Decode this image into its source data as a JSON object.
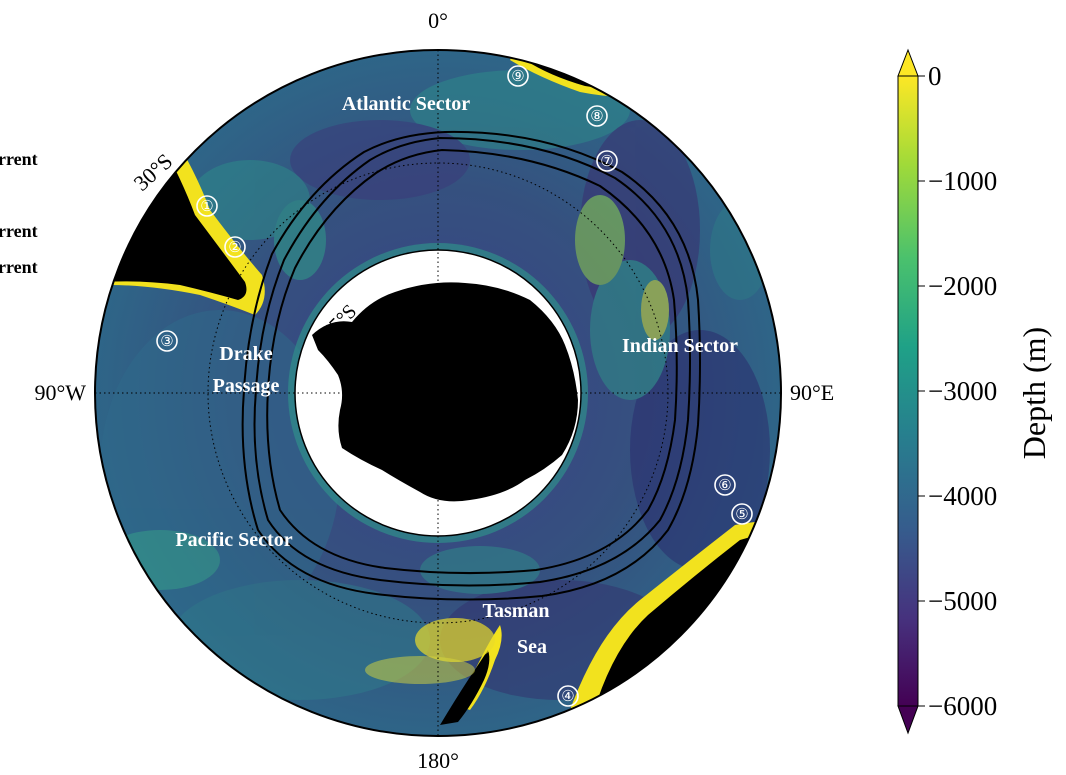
{
  "map": {
    "meridian_labels": {
      "top": "0°",
      "bottom": "180°",
      "left": "90°W",
      "right": "90°E"
    },
    "latitude_labels": {
      "outer": "30°S",
      "inner": "65°S"
    },
    "sector_labels": {
      "atlantic": "Atlantic Sector",
      "indian": "Indian Sector",
      "pacific": "Pacific Sector"
    },
    "place_labels": {
      "drake_line1": "Drake",
      "drake_line2": "Passage",
      "tasman_line1": "Tasman",
      "tasman_line2": "Sea"
    },
    "markers": [
      "①",
      "②",
      "③",
      "④",
      "⑤",
      "⑥",
      "⑦",
      "⑧",
      "⑨"
    ],
    "legend_fragments": [
      "rrent",
      "rrent",
      "rrent"
    ],
    "colors": {
      "land": "#000000",
      "deep": "#3d2a78",
      "mid": "#2f6e8e",
      "shallow": "#2f9e8a",
      "shelf": "#f2e21e",
      "front_lines": "#000000"
    }
  },
  "colorbar": {
    "title": "Depth (m)",
    "ticks": [
      "0",
      "−1000",
      "−2000",
      "−3000",
      "−4000",
      "−5000",
      "−6000"
    ],
    "tick_values": [
      0,
      -1000,
      -2000,
      -3000,
      -4000,
      -5000,
      -6000
    ],
    "range": [
      -6000,
      0
    ],
    "extend": "both",
    "colormap": "viridis",
    "stops": [
      "#440154",
      "#46327e",
      "#365c8d",
      "#277f8e",
      "#1fa187",
      "#4ac16d",
      "#a0da39",
      "#fde725"
    ]
  }
}
